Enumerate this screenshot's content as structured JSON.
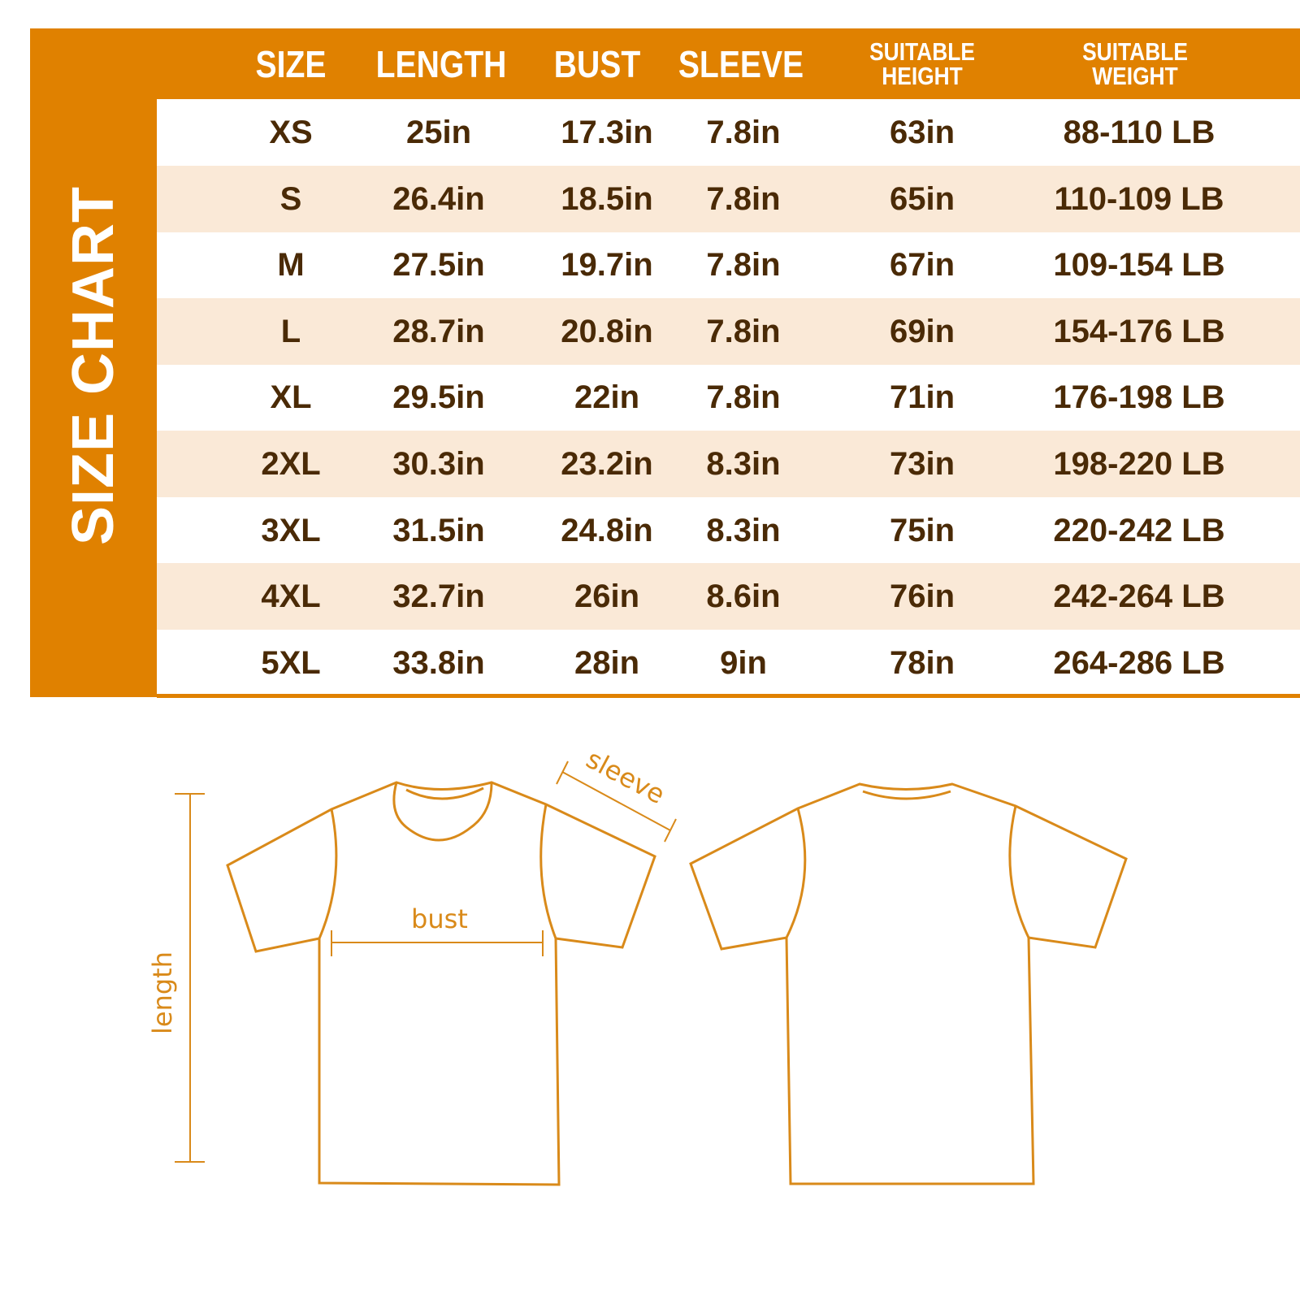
{
  "title": "SIZE CHART",
  "columns": [
    "SIZE",
    "LENGTH",
    "BUST",
    "SLEEVE",
    "SUITABLE HEIGHT",
    "SUITABLE WEIGHT"
  ],
  "rows": [
    [
      "XS",
      "25in",
      "17.3in",
      "7.8in",
      "63in",
      "88-110 LB"
    ],
    [
      "S",
      "26.4in",
      "18.5in",
      "7.8in",
      "65in",
      "110-109 LB"
    ],
    [
      "M",
      "27.5in",
      "19.7in",
      "7.8in",
      "67in",
      "109-154 LB"
    ],
    [
      "L",
      "28.7in",
      "20.8in",
      "7.8in",
      "69in",
      "154-176 LB"
    ],
    [
      "XL",
      "29.5in",
      "22in",
      "7.8in",
      "71in",
      "176-198 LB"
    ],
    [
      "2XL",
      "30.3in",
      "23.2in",
      "8.3in",
      "73in",
      "198-220 LB"
    ],
    [
      "3XL",
      "31.5in",
      "24.8in",
      "8.3in",
      "75in",
      "220-242 LB"
    ],
    [
      "4XL",
      "32.7in",
      "26in",
      "8.6in",
      "76in",
      "242-264 LB"
    ],
    [
      "5XL",
      "33.8in",
      "28in",
      "9in",
      "78in",
      "264-286 LB"
    ]
  ],
  "diagram": {
    "length": "length",
    "bust": "bust",
    "sleeve": "sleeve"
  },
  "colors": {
    "accent": "#e08100",
    "row_alt": "#fae9d7",
    "text": "#4a2a06",
    "outline": "#d98a1a"
  }
}
